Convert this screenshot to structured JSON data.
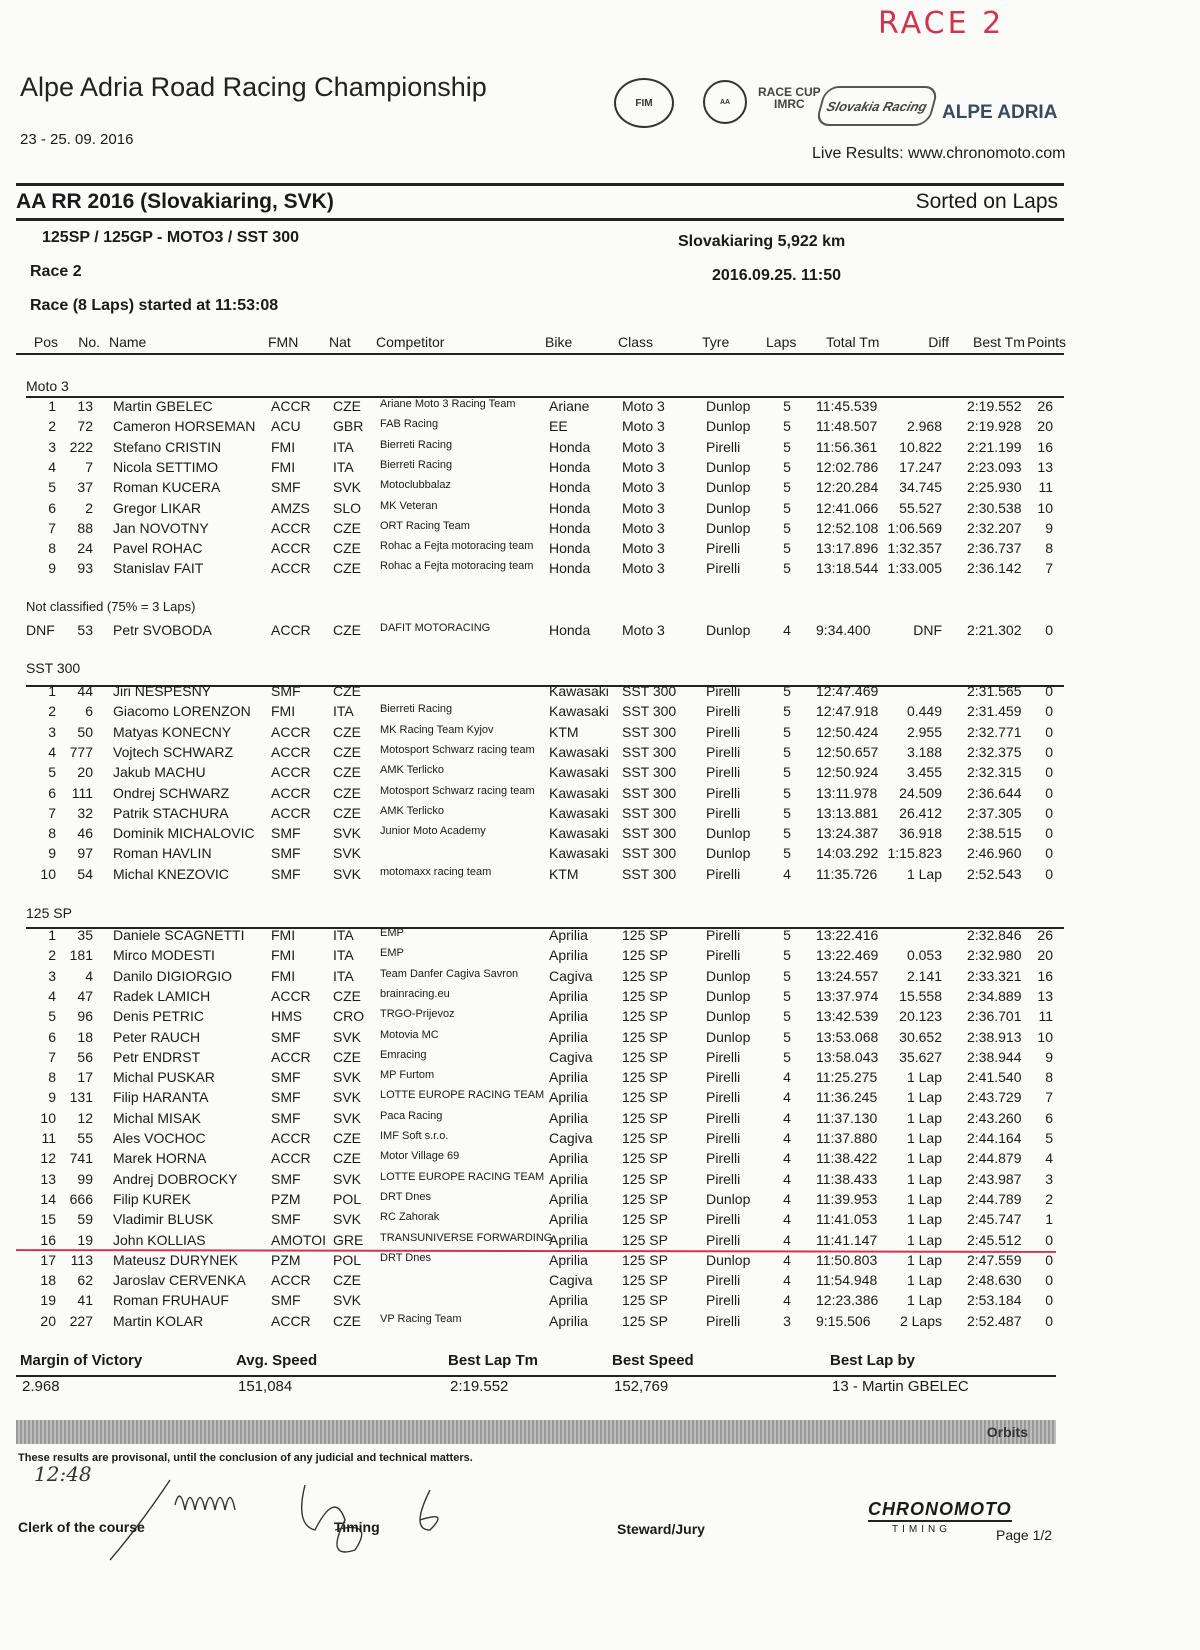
{
  "handwritten_note": "RACE 2",
  "header": {
    "title": "Alpe Adria Road Racing Championship",
    "dates": "23 - 25. 09. 2016",
    "live_results": "Live Results: www.chronomoto.com",
    "logos": [
      "FIM",
      "Alpe Adria",
      "Race Cup IMRC",
      "Slovakia Racing",
      "ALPE ADRIA"
    ]
  },
  "event": {
    "name": "AA RR 2016 (Slovakiaring, SVK)",
    "sort": "Sorted on Laps",
    "classes": "125SP / 125GP - MOTO3 / SST 300",
    "track": "Slovakiaring 5,922 km",
    "session": "Race 2",
    "datetime": "2016.09.25. 11:50",
    "started": "Race (8 Laps) started at 11:53:08"
  },
  "columns": [
    "Pos",
    "No.",
    "Name",
    "FMN",
    "Nat",
    "Competitor",
    "Bike",
    "Class",
    "Tyre",
    "Laps",
    "Total Tm",
    "Diff",
    "Best Tm",
    "Points"
  ],
  "sections": [
    {
      "title": "Moto 3",
      "rows": [
        [
          "1",
          "13",
          "Martin GBELEC",
          "ACCR",
          "CZE",
          "Ariane Moto 3 Racing Team",
          "Ariane",
          "Moto 3",
          "Dunlop",
          "5",
          "11:45.539",
          "",
          "2:19.552",
          "26"
        ],
        [
          "2",
          "72",
          "Cameron HORSEMAN",
          "ACU",
          "GBR",
          "FAB Racing",
          "EE",
          "Moto 3",
          "Dunlop",
          "5",
          "11:48.507",
          "2.968",
          "2:19.928",
          "20"
        ],
        [
          "3",
          "222",
          "Stefano CRISTIN",
          "FMI",
          "ITA",
          "Bierreti Racing",
          "Honda",
          "Moto 3",
          "Pirelli",
          "5",
          "11:56.361",
          "10.822",
          "2:21.199",
          "16"
        ],
        [
          "4",
          "7",
          "Nicola SETTIMO",
          "FMI",
          "ITA",
          "Bierreti Racing",
          "Honda",
          "Moto 3",
          "Dunlop",
          "5",
          "12:02.786",
          "17.247",
          "2:23.093",
          "13"
        ],
        [
          "5",
          "37",
          "Roman KUCERA",
          "SMF",
          "SVK",
          "Motoclubbalaz",
          "Honda",
          "Moto 3",
          "Dunlop",
          "5",
          "12:20.284",
          "34.745",
          "2:25.930",
          "11"
        ],
        [
          "6",
          "2",
          "Gregor LIKAR",
          "AMZS",
          "SLO",
          "MK Veteran",
          "Honda",
          "Moto 3",
          "Dunlop",
          "5",
          "12:41.066",
          "55.527",
          "2:30.538",
          "10"
        ],
        [
          "7",
          "88",
          "Jan NOVOTNY",
          "ACCR",
          "CZE",
          "ORT Racing Team",
          "Honda",
          "Moto 3",
          "Dunlop",
          "5",
          "12:52.108",
          "1:06.569",
          "2:32.207",
          "9"
        ],
        [
          "8",
          "24",
          "Pavel ROHAC",
          "ACCR",
          "CZE",
          "Rohac a Fejta motoracing team",
          "Honda",
          "Moto 3",
          "Pirelli",
          "5",
          "13:17.896",
          "1:32.357",
          "2:36.737",
          "8"
        ],
        [
          "9",
          "93",
          "Stanislav FAIT",
          "ACCR",
          "CZE",
          "Rohac a Fejta motoracing team",
          "Honda",
          "Moto 3",
          "Pirelli",
          "5",
          "13:18.544",
          "1:33.005",
          "2:36.142",
          "7"
        ]
      ],
      "not_classified_label": "Not classified (75% = 3 Laps)",
      "not_classified": [
        [
          "DNF",
          "53",
          "Petr SVOBODA",
          "ACCR",
          "CZE",
          "DAFIT MOTORACING",
          "Honda",
          "Moto 3",
          "Dunlop",
          "4",
          "9:34.400",
          "DNF",
          "2:21.302",
          "0"
        ]
      ]
    },
    {
      "title": "SST 300",
      "rows": [
        [
          "1",
          "44",
          "Jiri NESPESNY",
          "SMF",
          "CZE",
          "",
          "Kawasaki",
          "SST 300",
          "Pirelli",
          "5",
          "12:47.469",
          "",
          "2:31.565",
          "0"
        ],
        [
          "2",
          "6",
          "Giacomo LORENZON",
          "FMI",
          "ITA",
          "Bierreti Racing",
          "Kawasaki",
          "SST 300",
          "Pirelli",
          "5",
          "12:47.918",
          "0.449",
          "2:31.459",
          "0"
        ],
        [
          "3",
          "50",
          "Matyas KONECNY",
          "ACCR",
          "CZE",
          "MK Racing Team Kyjov",
          "KTM",
          "SST 300",
          "Pirelli",
          "5",
          "12:50.424",
          "2.955",
          "2:32.771",
          "0"
        ],
        [
          "4",
          "777",
          "Vojtech SCHWARZ",
          "ACCR",
          "CZE",
          "Motosport Schwarz racing team",
          "Kawasaki",
          "SST 300",
          "Pirelli",
          "5",
          "12:50.657",
          "3.188",
          "2:32.375",
          "0"
        ],
        [
          "5",
          "20",
          "Jakub MACHU",
          "ACCR",
          "CZE",
          "AMK Terlicko",
          "Kawasaki",
          "SST 300",
          "Pirelli",
          "5",
          "12:50.924",
          "3.455",
          "2:32.315",
          "0"
        ],
        [
          "6",
          "111",
          "Ondrej SCHWARZ",
          "ACCR",
          "CZE",
          "Motosport Schwarz racing team",
          "Kawasaki",
          "SST 300",
          "Pirelli",
          "5",
          "13:11.978",
          "24.509",
          "2:36.644",
          "0"
        ],
        [
          "7",
          "32",
          "Patrik STACHURA",
          "ACCR",
          "CZE",
          "AMK Terlicko",
          "Kawasaki",
          "SST 300",
          "Pirelli",
          "5",
          "13:13.881",
          "26.412",
          "2:37.305",
          "0"
        ],
        [
          "8",
          "46",
          "Dominik MICHALOVIC",
          "SMF",
          "SVK",
          "Junior Moto Academy",
          "Kawasaki",
          "SST 300",
          "Dunlop",
          "5",
          "13:24.387",
          "36.918",
          "2:38.515",
          "0"
        ],
        [
          "9",
          "97",
          "Roman HAVLIN",
          "SMF",
          "SVK",
          "",
          "Kawasaki",
          "SST 300",
          "Dunlop",
          "5",
          "14:03.292",
          "1:15.823",
          "2:46.960",
          "0"
        ],
        [
          "10",
          "54",
          "Michal KNEZOVIC",
          "SMF",
          "SVK",
          "motomaxx racing team",
          "KTM",
          "SST 300",
          "Pirelli",
          "4",
          "11:35.726",
          "1 Lap",
          "2:52.543",
          "0"
        ]
      ]
    },
    {
      "title": "125 SP",
      "rows": [
        [
          "1",
          "35",
          "Daniele SCAGNETTI",
          "FMI",
          "ITA",
          "EMP",
          "Aprilia",
          "125 SP",
          "Pirelli",
          "5",
          "13:22.416",
          "",
          "2:32.846",
          "26"
        ],
        [
          "2",
          "181",
          "Mirco MODESTI",
          "FMI",
          "ITA",
          "EMP",
          "Aprilia",
          "125 SP",
          "Pirelli",
          "5",
          "13:22.469",
          "0.053",
          "2:32.980",
          "20"
        ],
        [
          "3",
          "4",
          "Danilo DIGIORGIO",
          "FMI",
          "ITA",
          "Team Danfer Cagiva Savron",
          "Cagiva",
          "125 SP",
          "Dunlop",
          "5",
          "13:24.557",
          "2.141",
          "2:33.321",
          "16"
        ],
        [
          "4",
          "47",
          "Radek LAMICH",
          "ACCR",
          "CZE",
          "brainracing.eu",
          "Aprilia",
          "125 SP",
          "Dunlop",
          "5",
          "13:37.974",
          "15.558",
          "2:34.889",
          "13"
        ],
        [
          "5",
          "96",
          "Denis PETRIC",
          "HMS",
          "CRO",
          "TRGO-Prijevoz",
          "Aprilia",
          "125 SP",
          "Dunlop",
          "5",
          "13:42.539",
          "20.123",
          "2:36.701",
          "11"
        ],
        [
          "6",
          "18",
          "Peter RAUCH",
          "SMF",
          "SVK",
          "Motovia MC",
          "Aprilia",
          "125 SP",
          "Dunlop",
          "5",
          "13:53.068",
          "30.652",
          "2:38.913",
          "10"
        ],
        [
          "7",
          "56",
          "Petr ENDRST",
          "ACCR",
          "CZE",
          "Emracing",
          "Cagiva",
          "125 SP",
          "Pirelli",
          "5",
          "13:58.043",
          "35.627",
          "2:38.944",
          "9"
        ],
        [
          "8",
          "17",
          "Michal PUSKAR",
          "SMF",
          "SVK",
          "MP Furtom",
          "Aprilia",
          "125 SP",
          "Pirelli",
          "4",
          "11:25.275",
          "1 Lap",
          "2:41.540",
          "8"
        ],
        [
          "9",
          "131",
          "Filip HARANTA",
          "SMF",
          "SVK",
          "LOTTE EUROPE RACING TEAM",
          "Aprilia",
          "125 SP",
          "Pirelli",
          "4",
          "11:36.245",
          "1 Lap",
          "2:43.729",
          "7"
        ],
        [
          "10",
          "12",
          "Michal MISAK",
          "SMF",
          "SVK",
          "Paca Racing",
          "Aprilia",
          "125 SP",
          "Pirelli",
          "4",
          "11:37.130",
          "1 Lap",
          "2:43.260",
          "6"
        ],
        [
          "11",
          "55",
          "Ales VOCHOC",
          "ACCR",
          "CZE",
          "IMF Soft s.r.o.",
          "Cagiva",
          "125 SP",
          "Pirelli",
          "4",
          "11:37.880",
          "1 Lap",
          "2:44.164",
          "5"
        ],
        [
          "12",
          "741",
          "Marek HORNA",
          "ACCR",
          "CZE",
          "Motor Village 69",
          "Aprilia",
          "125 SP",
          "Pirelli",
          "4",
          "11:38.422",
          "1 Lap",
          "2:44.879",
          "4"
        ],
        [
          "13",
          "99",
          "Andrej DOBROCKY",
          "SMF",
          "SVK",
          "LOTTE EUROPE RACING TEAM",
          "Aprilia",
          "125 SP",
          "Pirelli",
          "4",
          "11:38.433",
          "1 Lap",
          "2:43.987",
          "3"
        ],
        [
          "14",
          "666",
          "Filip KUREK",
          "PZM",
          "POL",
          "DRT Dnes",
          "Aprilia",
          "125 SP",
          "Dunlop",
          "4",
          "11:39.953",
          "1 Lap",
          "2:44.789",
          "2"
        ],
        [
          "15",
          "59",
          "Vladimir BLUSK",
          "SMF",
          "SVK",
          "RC Zahorak",
          "Aprilia",
          "125 SP",
          "Pirelli",
          "4",
          "11:41.053",
          "1 Lap",
          "2:45.747",
          "1"
        ],
        [
          "16",
          "19",
          "John KOLLIAS",
          "AMOTOI",
          "GRE",
          "TRANSUNIVERSE FORWARDING",
          "Aprilia",
          "125 SP",
          "Pirelli",
          "4",
          "11:41.147",
          "1 Lap",
          "2:45.512",
          "0"
        ],
        [
          "17",
          "113",
          "Mateusz DURYNEK",
          "PZM",
          "POL",
          "DRT Dnes",
          "Aprilia",
          "125 SP",
          "Dunlop",
          "4",
          "11:50.803",
          "1 Lap",
          "2:47.559",
          "0"
        ],
        [
          "18",
          "62",
          "Jaroslav CERVENKA",
          "ACCR",
          "CZE",
          "",
          "Cagiva",
          "125 SP",
          "Pirelli",
          "4",
          "11:54.948",
          "1 Lap",
          "2:48.630",
          "0"
        ],
        [
          "19",
          "41",
          "Roman FRUHAUF",
          "SMF",
          "SVK",
          "",
          "Aprilia",
          "125 SP",
          "Pirelli",
          "4",
          "12:23.386",
          "1 Lap",
          "2:53.184",
          "0"
        ],
        [
          "20",
          "227",
          "Martin KOLAR",
          "ACCR",
          "CZE",
          "VP Racing Team",
          "Aprilia",
          "125 SP",
          "Pirelli",
          "3",
          "9:15.506",
          "2 Laps",
          "2:52.487",
          "0"
        ]
      ]
    }
  ],
  "summary": {
    "labels": [
      "Margin of Victory",
      "Avg. Speed",
      "Best Lap Tm",
      "Best Speed",
      "Best Lap by"
    ],
    "values": [
      "2.968",
      "151,084",
      "2:19.552",
      "152,769",
      "13 - Martin GBELEC"
    ]
  },
  "footer": {
    "bar_label": "Orbits",
    "disclaimer": "These results are provisonal, until the conclusion of any judicial and technical matters.",
    "handwritten_time": "12:48",
    "signatures": [
      "Clerk of the course",
      "Timing",
      "Steward/Jury"
    ],
    "timing_logo": "CHRONOMOTO",
    "timing_logo_sub": "TIMING",
    "page": "Page 1/2"
  },
  "colors": {
    "annotation": "#d0354f",
    "text": "#1a1a1a"
  }
}
